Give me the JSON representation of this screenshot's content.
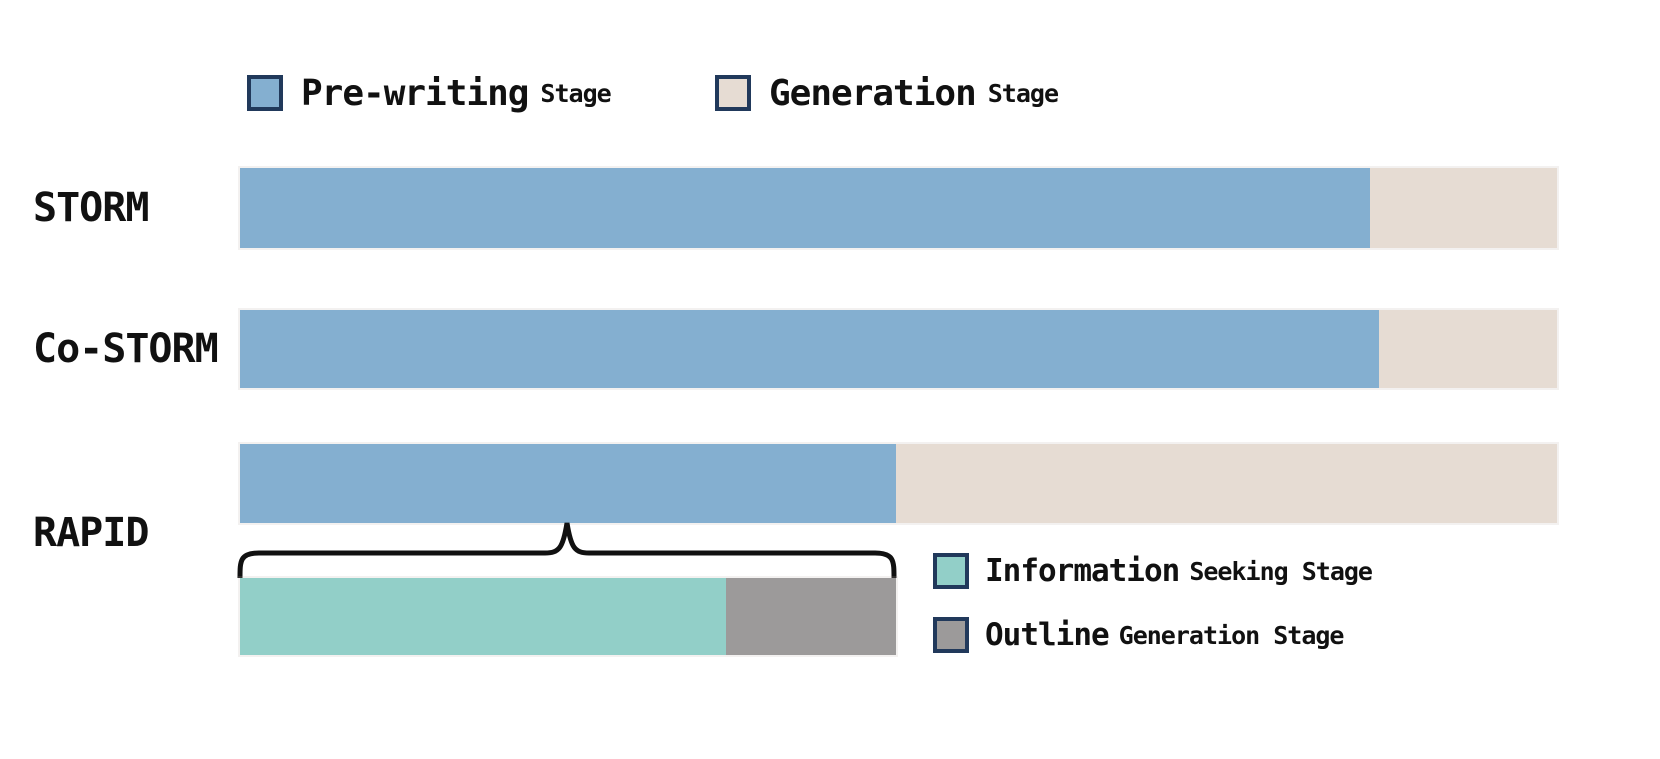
{
  "colors": {
    "pre_writing": "#84AFD0",
    "generation": "#E6DCD3",
    "info_seeking": "#92CFC8",
    "outline_generation": "#9C9A9A",
    "legend_border": "#21395B",
    "brace": "#111111",
    "text": "#111111"
  },
  "legend_top": {
    "items": [
      {
        "main": "Pre-writing",
        "sub": "Stage",
        "color_key": "pre_writing"
      },
      {
        "main": "Generation",
        "sub": "Stage",
        "color_key": "generation"
      }
    ]
  },
  "legend_bottom": {
    "items": [
      {
        "main": "Information",
        "sub": "Seeking Stage",
        "color_key": "info_seeking"
      },
      {
        "main": "Outline",
        "sub": "Generation Stage",
        "color_key": "outline_generation"
      }
    ]
  },
  "chart_data": {
    "type": "bar",
    "orientation": "horizontal_stacked_percent",
    "title": "",
    "xlabel": "",
    "ylabel": "",
    "axes_visible": false,
    "xlim_percent": [
      0,
      100
    ],
    "legend_position": [
      "top-left",
      "bottom-right"
    ],
    "categories": [
      "STORM",
      "Co-STORM",
      "RAPID"
    ],
    "series": [
      {
        "name": "Pre-writing Stage",
        "values": [
          85.8,
          86.5,
          49.8
        ]
      },
      {
        "name": "Generation Stage",
        "values": [
          14.2,
          13.5,
          50.2
        ]
      }
    ],
    "rows": [
      {
        "label": "STORM",
        "segments": [
          {
            "stage": "Pre-writing Stage",
            "pct": 85.8
          },
          {
            "stage": "Generation Stage",
            "pct": 14.2
          }
        ]
      },
      {
        "label": "Co-STORM",
        "segments": [
          {
            "stage": "Pre-writing Stage",
            "pct": 86.5
          },
          {
            "stage": "Generation Stage",
            "pct": 13.5
          }
        ]
      },
      {
        "label": "RAPID",
        "segments": [
          {
            "stage": "Pre-writing Stage",
            "pct": 49.8
          },
          {
            "stage": "Generation Stage",
            "pct": 50.2
          }
        ]
      }
    ],
    "rapid_breakdown": {
      "of": "RAPID Pre-writing Stage",
      "annotation": "brace spanning RAPID pre-writing segment",
      "segments": [
        {
          "stage": "Information Seeking Stage",
          "pct": 74.1
        },
        {
          "stage": "Outline Generation Stage",
          "pct": 25.9
        }
      ]
    }
  }
}
